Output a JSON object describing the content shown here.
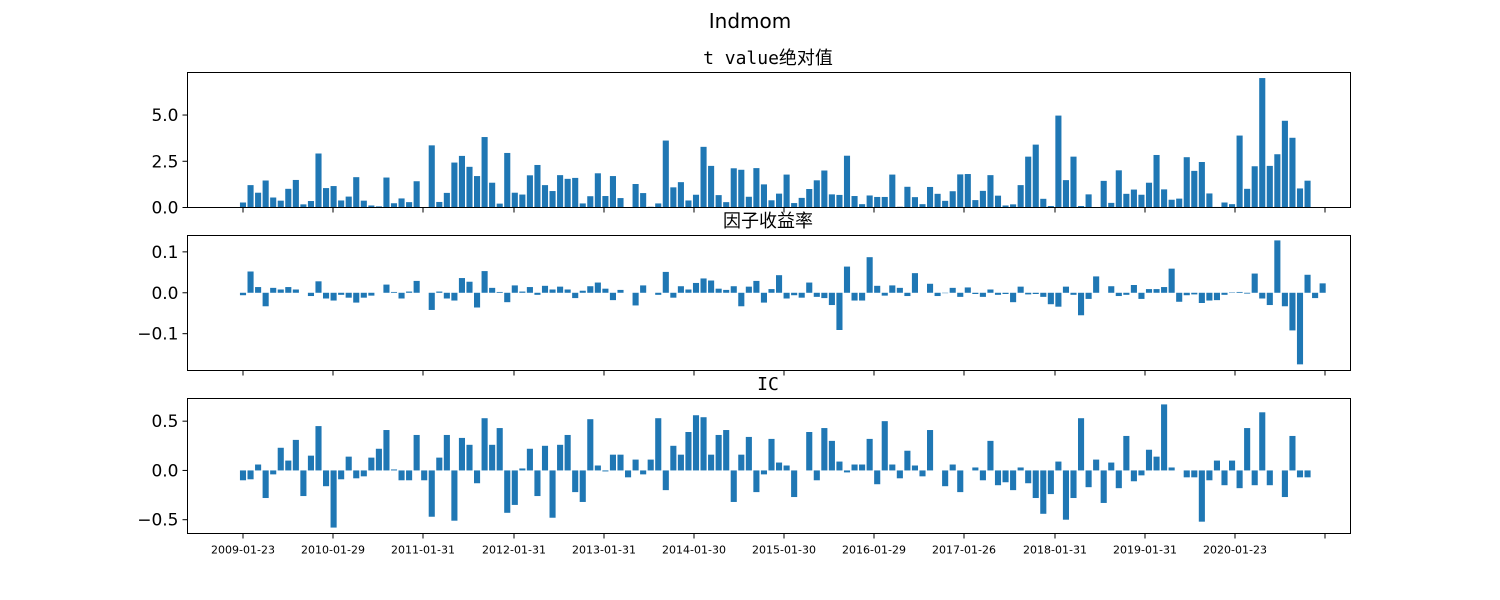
{
  "figure_title": "Indmom",
  "colors": {
    "bar": "#1f77b4",
    "axis": "#000000",
    "background": "#ffffff"
  },
  "x_tick_labels": [
    "2009-01-23",
    "2010-01-29",
    "2011-01-31",
    "2012-01-31",
    "2013-01-31",
    "2014-01-30",
    "2015-01-30",
    "2016-01-29",
    "2017-01-26",
    "2018-01-31",
    "2019-01-31",
    "2020-01-23"
  ],
  "chart_data": [
    {
      "type": "bar",
      "title": "t value绝对值",
      "ylim": [
        0,
        7.3
      ],
      "yticks": [
        0,
        2.5,
        5
      ],
      "ytick_labels": [
        "0.0",
        "2.5",
        "5.0"
      ],
      "values": [
        0.27,
        1.21,
        0.8,
        1.46,
        0.54,
        0.37,
        1.01,
        1.49,
        0.17,
        0.35,
        2.92,
        1.05,
        1.16,
        0.38,
        0.59,
        1.64,
        0.37,
        0.11,
        0.06,
        1.62,
        0.23,
        0.49,
        0.29,
        1.42,
        0.01,
        3.36,
        0.3,
        0.79,
        2.43,
        2.79,
        2.2,
        1.7,
        3.81,
        1.34,
        0.21,
        2.95,
        0.8,
        0.7,
        1.74,
        2.3,
        1.21,
        0.89,
        1.75,
        1.55,
        1.6,
        0.22,
        0.61,
        1.85,
        0.62,
        1.7,
        0.51,
        0.01,
        1.27,
        0.78,
        0.04,
        0.22,
        3.62,
        1.09,
        1.37,
        0.38,
        0.69,
        3.28,
        2.25,
        0.67,
        0.29,
        2.12,
        2.04,
        0.58,
        2.13,
        1.25,
        0.39,
        0.75,
        1.78,
        0.24,
        0.52,
        1.0,
        1.47,
        2.0,
        0.71,
        0.68,
        2.8,
        0.62,
        0.18,
        0.65,
        0.57,
        0.57,
        1.78,
        0.04,
        1.12,
        0.56,
        0.18,
        1.11,
        0.74,
        0.36,
        0.88,
        1.79,
        1.81,
        0.4,
        0.9,
        1.75,
        0.64,
        0.11,
        0.17,
        1.21,
        2.75,
        3.4,
        0.47,
        0.08,
        4.97,
        1.48,
        2.75,
        0.08,
        0.71,
        0.02,
        1.44,
        0.25,
        2.01,
        0.74,
        0.97,
        0.69,
        1.34,
        2.84,
        0.98,
        0.42,
        0.48,
        2.72,
        1.98,
        2.46,
        0.76,
        0.03,
        0.27,
        0.18,
        3.89,
        1.01,
        2.23,
        7.0,
        2.25,
        2.88,
        4.69,
        3.77,
        1.03,
        1.45
      ]
    },
    {
      "type": "bar",
      "title": "因子收益率",
      "ylim": [
        -0.19,
        0.14
      ],
      "yticks": [
        -0.1,
        0,
        0.1
      ],
      "ytick_labels": [
        "−0.1",
        "0.0",
        "0.1"
      ],
      "values": [
        -0.006,
        0.052,
        0.014,
        -0.033,
        0.012,
        0.008,
        0.014,
        0.008,
        0.0,
        -0.008,
        0.028,
        -0.014,
        -0.019,
        -0.005,
        -0.012,
        -0.024,
        -0.012,
        -0.007,
        0.0,
        0.02,
        0.002,
        -0.014,
        0.003,
        0.029,
        0.0,
        -0.042,
        0.003,
        -0.014,
        -0.019,
        0.036,
        0.027,
        -0.036,
        0.053,
        0.012,
        0.002,
        -0.023,
        0.018,
        0.003,
        0.014,
        -0.005,
        0.017,
        0.008,
        0.015,
        0.008,
        -0.013,
        0.005,
        0.016,
        0.025,
        0.01,
        -0.018,
        0.007,
        0.0,
        -0.031,
        0.018,
        0.0,
        -0.005,
        0.051,
        -0.012,
        0.016,
        0.008,
        0.024,
        0.035,
        0.03,
        0.01,
        0.007,
        0.016,
        -0.033,
        0.015,
        0.029,
        -0.024,
        0.009,
        0.043,
        -0.014,
        -0.006,
        -0.012,
        0.025,
        -0.01,
        -0.013,
        -0.03,
        -0.091,
        0.064,
        -0.019,
        -0.019,
        0.087,
        0.017,
        -0.007,
        0.018,
        0.012,
        -0.008,
        0.048,
        0.0,
        0.022,
        -0.008,
        -0.001,
        0.012,
        -0.01,
        0.013,
        -0.003,
        -0.01,
        0.008,
        -0.005,
        -0.003,
        -0.023,
        0.015,
        -0.004,
        -0.003,
        -0.01,
        -0.028,
        -0.034,
        0.015,
        -0.005,
        -0.055,
        -0.015,
        0.04,
        0.0,
        0.016,
        -0.008,
        -0.005,
        0.019,
        -0.015,
        0.009,
        0.009,
        0.014,
        0.059,
        -0.022,
        -0.006,
        -0.004,
        -0.025,
        -0.019,
        -0.018,
        -0.005,
        0.001,
        0.002,
        -0.002,
        0.047,
        -0.014,
        -0.03,
        0.128,
        -0.033,
        -0.092,
        -0.175,
        0.044,
        -0.013,
        0.023
      ]
    },
    {
      "type": "bar",
      "title": "IC",
      "ylim": [
        -0.64,
        0.73
      ],
      "yticks": [
        -0.5,
        0,
        0.5
      ],
      "ytick_labels": [
        "−0.5",
        "0.0",
        "0.5"
      ],
      "values": [
        -0.1,
        -0.09,
        0.06,
        -0.28,
        -0.04,
        0.23,
        0.1,
        0.31,
        -0.26,
        0.15,
        0.45,
        -0.16,
        -0.58,
        -0.09,
        0.14,
        -0.08,
        -0.06,
        0.13,
        0.22,
        0.41,
        0.01,
        -0.1,
        -0.1,
        0.36,
        -0.1,
        -0.47,
        0.13,
        0.36,
        -0.51,
        0.33,
        0.26,
        -0.13,
        0.53,
        0.26,
        0.43,
        -0.43,
        -0.35,
        0.02,
        0.22,
        -0.26,
        0.25,
        -0.48,
        0.26,
        0.36,
        -0.22,
        -0.32,
        0.52,
        0.05,
        -0.01,
        0.16,
        0.16,
        -0.07,
        0.11,
        -0.04,
        0.11,
        0.53,
        -0.2,
        0.25,
        0.16,
        0.39,
        0.56,
        0.54,
        0.16,
        0.36,
        0.41,
        -0.32,
        0.16,
        0.34,
        -0.22,
        -0.04,
        0.32,
        0.08,
        0.05,
        -0.27,
        0.0,
        0.39,
        -0.1,
        0.43,
        0.3,
        0.09,
        -0.02,
        0.06,
        0.06,
        0.32,
        -0.14,
        0.5,
        0.06,
        -0.08,
        0.2,
        0.05,
        -0.06,
        0.41,
        0.0,
        -0.16,
        0.06,
        -0.22,
        0.0,
        0.03,
        -0.1,
        0.3,
        -0.15,
        -0.12,
        -0.2,
        0.03,
        -0.13,
        -0.28,
        -0.44,
        -0.24,
        0.09,
        -0.5,
        -0.28,
        0.53,
        -0.17,
        0.11,
        -0.33,
        0.08,
        -0.18,
        0.35,
        -0.11,
        -0.05,
        0.21,
        0.14,
        0.67,
        0.03,
        0.0,
        -0.07,
        -0.07,
        -0.52,
        -0.1,
        0.1,
        -0.15,
        0.1,
        -0.18,
        0.43,
        -0.15,
        0.59,
        -0.15,
        0.0,
        -0.27,
        0.35,
        -0.07,
        -0.07
      ]
    }
  ]
}
